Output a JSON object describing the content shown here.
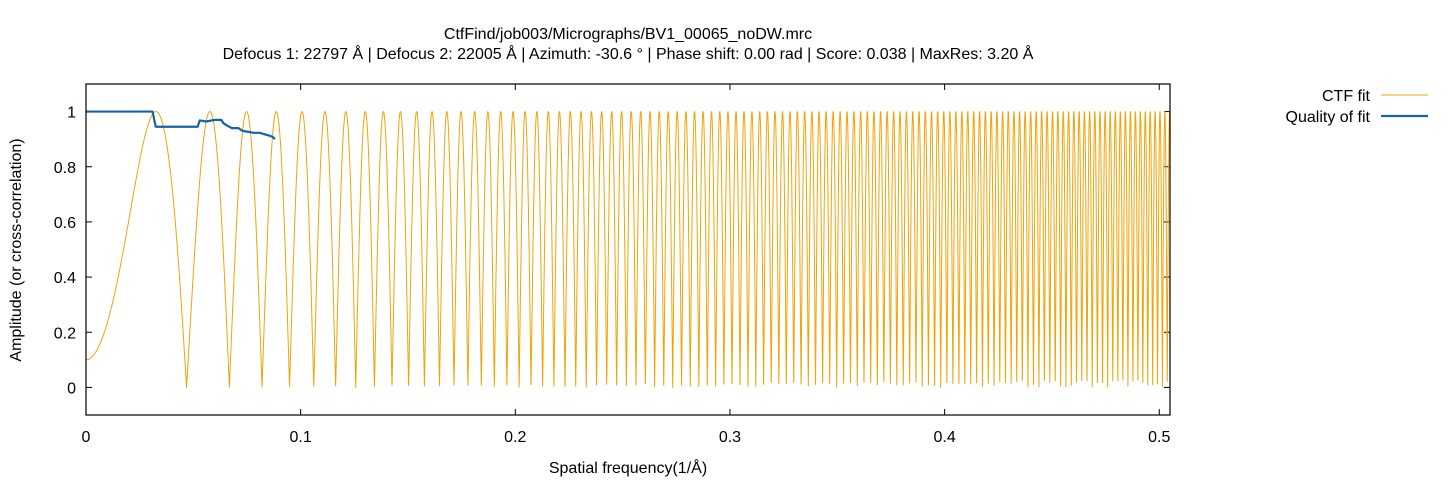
{
  "chart_data": {
    "type": "line",
    "title": "CtfFind/job003/Micrographs/BV1_00065_noDW.mrc",
    "subtitle": "Defocus 1: 22797 Å | Defocus 2: 22005 Å | Azimuth: -30.6 ° | Phase shift: 0.00 rad | Score: 0.038 | MaxRes: 3.20 Å",
    "xlabel": "Spatial frequency(1/Å)",
    "ylabel": "Amplitude (or cross-correlation)",
    "xlim": [
      0,
      0.505
    ],
    "ylim": [
      -0.1,
      1.1
    ],
    "xticks": [
      {
        "value": 0,
        "label": "0"
      },
      {
        "value": 0.1,
        "label": "0.1"
      },
      {
        "value": 0.2,
        "label": "0.2"
      },
      {
        "value": 0.3,
        "label": "0.3"
      },
      {
        "value": 0.4,
        "label": "0.4"
      },
      {
        "value": 0.5,
        "label": "0.5"
      }
    ],
    "yticks": [
      {
        "value": 0,
        "label": "0"
      },
      {
        "value": 0.2,
        "label": "0.2"
      },
      {
        "value": 0.4,
        "label": "0.4"
      },
      {
        "value": 0.6,
        "label": "0.6"
      },
      {
        "value": 0.8,
        "label": "0.8"
      },
      {
        "value": 1,
        "label": "1"
      }
    ],
    "legend_position": "top-right, outside plot",
    "series": [
      {
        "name": "CTF fit",
        "color": "#f0a30a",
        "style": "thin oscillating line",
        "defocus_angstrom": 22400,
        "amplitude_contrast": 0.1,
        "x_range": [
          0,
          0.505
        ]
      },
      {
        "name": "Quality of fit",
        "color": "#1463a8",
        "style": "thick line",
        "points": [
          [
            0.0,
            1.0
          ],
          [
            0.031,
            1.0
          ],
          [
            0.0325,
            0.945
          ],
          [
            0.052,
            0.945
          ],
          [
            0.053,
            0.968
          ],
          [
            0.056,
            0.964
          ],
          [
            0.06,
            0.97
          ],
          [
            0.063,
            0.97
          ],
          [
            0.064,
            0.958
          ],
          [
            0.066,
            0.948
          ],
          [
            0.068,
            0.94
          ],
          [
            0.071,
            0.94
          ],
          [
            0.073,
            0.93
          ],
          [
            0.076,
            0.926
          ],
          [
            0.078,
            0.923
          ],
          [
            0.081,
            0.923
          ],
          [
            0.083,
            0.918
          ],
          [
            0.085,
            0.914
          ],
          [
            0.087,
            0.908
          ],
          [
            0.088,
            0.9
          ]
        ]
      }
    ]
  }
}
